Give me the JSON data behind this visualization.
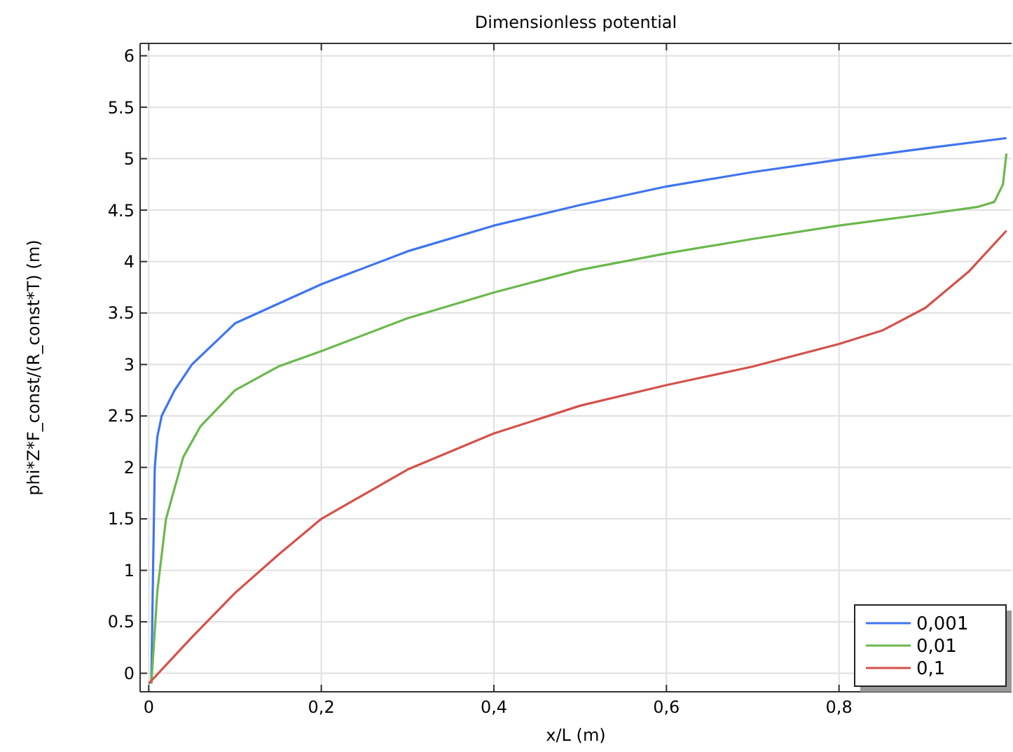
{
  "chart_data": {
    "type": "line",
    "title": "Dimensionless potential",
    "xlabel": "x/L (m)",
    "ylabel": "phi*Z*F_const/(R_const*T) (m)",
    "xlim": [
      -0.01,
      1
    ],
    "ylim": [
      -0.18,
      6.12
    ],
    "xticks": [
      0,
      {
        "value": 0.2,
        "label": "0,2"
      },
      {
        "value": 0.4,
        "label": "0,4"
      },
      {
        "value": 0.6,
        "label": "0,6"
      },
      {
        "value": 0.8,
        "label": "0,8"
      }
    ],
    "yticks": [
      0,
      0.5,
      1,
      1.5,
      2,
      2.5,
      3,
      3.5,
      4,
      4.5,
      5,
      5.5,
      6
    ],
    "grid": true,
    "legend": "bottom right",
    "line_style": "solid",
    "marker": "none",
    "series": [
      {
        "name": "0,001",
        "color": "#3f74f0",
        "x": [
          0.003,
          0.005,
          0.007,
          0.01,
          0.015,
          0.03,
          0.05,
          0.1,
          0.2,
          0.3,
          0.4,
          0.5,
          0.6,
          0.7,
          0.8,
          0.9,
          0.994
        ],
        "values": [
          -0.1,
          1,
          2,
          2.3,
          2.5,
          2.75,
          3.0,
          3.4,
          3.78,
          4.1,
          4.35,
          4.55,
          4.73,
          4.87,
          4.99,
          5.1,
          5.2
        ]
      },
      {
        "name": "0,01",
        "color": "#6ab84c",
        "x": [
          0.003,
          0.01,
          0.02,
          0.04,
          0.06,
          0.1,
          0.15,
          0.2,
          0.3,
          0.4,
          0.5,
          0.6,
          0.7,
          0.8,
          0.9,
          0.96,
          0.98,
          0.99,
          0.994
        ],
        "values": [
          -0.1,
          0.8,
          1.5,
          2.1,
          2.4,
          2.75,
          2.98,
          3.13,
          3.45,
          3.7,
          3.92,
          4.08,
          4.22,
          4.35,
          4.46,
          4.53,
          4.58,
          4.75,
          5.05
        ]
      },
      {
        "name": "0,1",
        "color": "#d4514a",
        "x": [
          0,
          0.05,
          0.1,
          0.15,
          0.2,
          0.3,
          0.4,
          0.5,
          0.6,
          0.7,
          0.8,
          0.85,
          0.9,
          0.95,
          0.994
        ],
        "values": [
          -0.1,
          0.35,
          0.78,
          1.15,
          1.5,
          1.98,
          2.33,
          2.6,
          2.8,
          2.98,
          3.2,
          3.33,
          3.55,
          3.9,
          4.3
        ]
      }
    ]
  }
}
